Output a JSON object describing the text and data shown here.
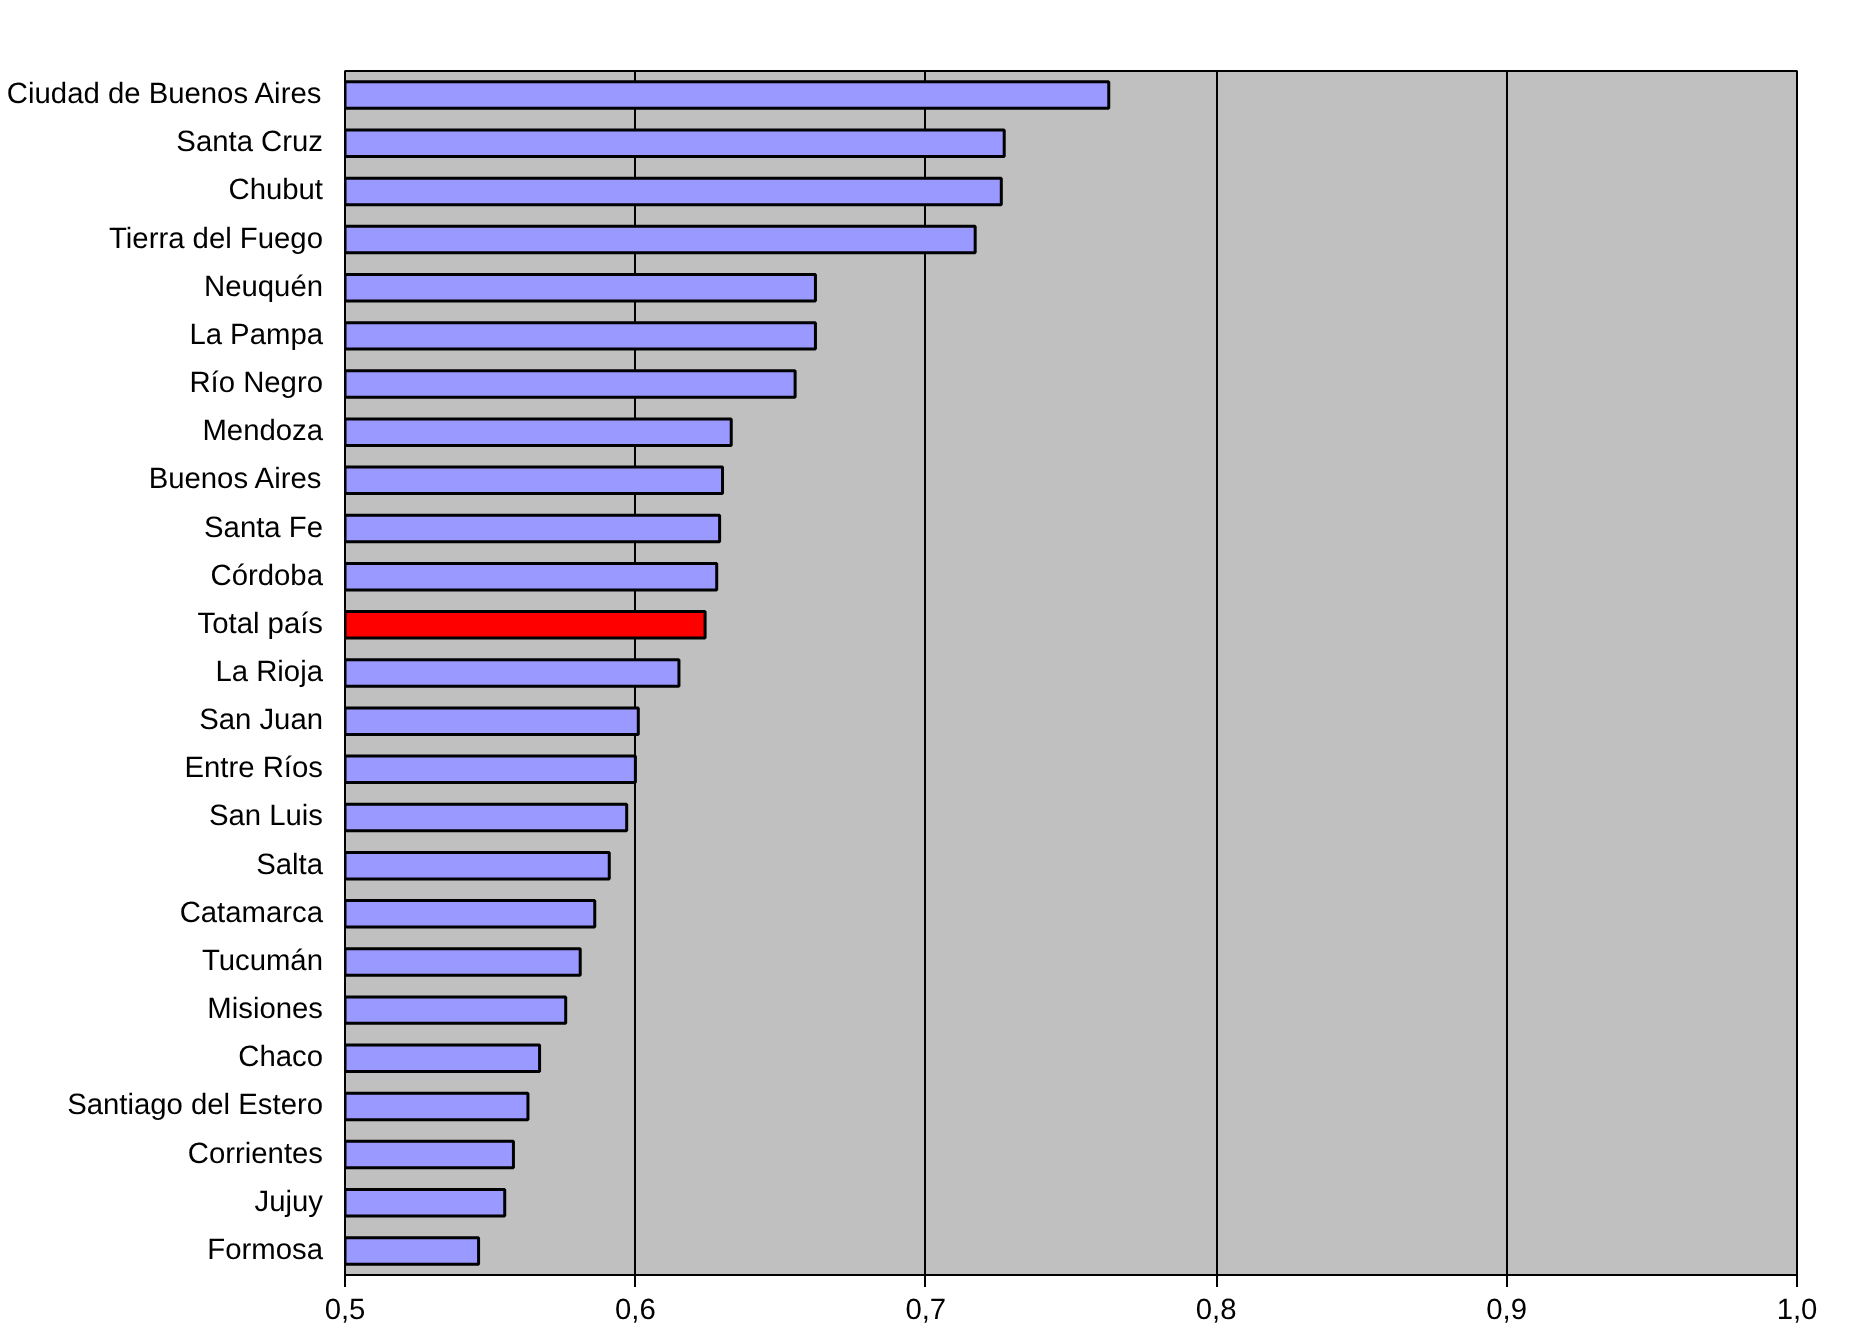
{
  "chart_data": {
    "type": "bar",
    "orientation": "horizontal",
    "categories": [
      "Ciudad de Buenos Aires",
      "Santa Cruz",
      "Chubut",
      "Tierra del Fuego",
      "Neuquén",
      "La Pampa",
      "Río Negro",
      "Mendoza",
      "Buenos Aires",
      "Santa Fe",
      "Córdoba",
      "Total país",
      "La Rioja",
      "San Juan",
      "Entre Ríos",
      "San Luis",
      "Salta",
      "Catamarca",
      "Tucumán",
      "Misiones",
      "Chaco",
      "Santiago del Estero",
      "Corrientes",
      "Jujuy",
      "Formosa"
    ],
    "values": [
      0.763,
      0.727,
      0.726,
      0.717,
      0.662,
      0.662,
      0.655,
      0.633,
      0.63,
      0.629,
      0.628,
      0.624,
      0.615,
      0.601,
      0.6,
      0.597,
      0.591,
      0.586,
      0.581,
      0.576,
      0.567,
      0.563,
      0.558,
      0.555,
      0.546
    ],
    "colors": [
      "#9999ff",
      "#9999ff",
      "#9999ff",
      "#9999ff",
      "#9999ff",
      "#9999ff",
      "#9999ff",
      "#9999ff",
      "#9999ff",
      "#9999ff",
      "#9999ff",
      "#ff0000",
      "#9999ff",
      "#9999ff",
      "#9999ff",
      "#9999ff",
      "#9999ff",
      "#9999ff",
      "#9999ff",
      "#9999ff",
      "#9999ff",
      "#9999ff",
      "#9999ff",
      "#9999ff",
      "#9999ff"
    ],
    "xlim": [
      0.5,
      1.0
    ],
    "xticks": [
      {
        "value": 0.5,
        "label": "0,5"
      },
      {
        "value": 0.6,
        "label": "0,6"
      },
      {
        "value": 0.7,
        "label": "0,7"
      },
      {
        "value": 0.8,
        "label": "0,8"
      },
      {
        "value": 0.9,
        "label": "0,9"
      },
      {
        "value": 1.0,
        "label": "1,0"
      }
    ],
    "grid": "x"
  }
}
